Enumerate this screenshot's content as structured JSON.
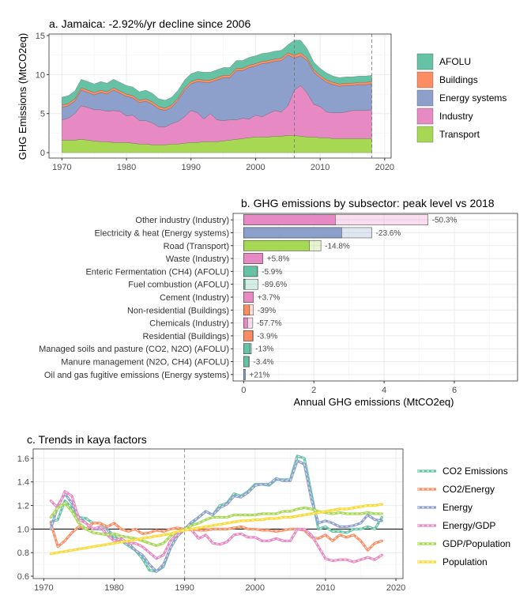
{
  "chart_data": [
    {
      "type": "area",
      "title": "a. Jamaica: -2.92%/yr decline since 2006",
      "ylabel": "GHG Emissions (MtCO2eq)",
      "xlabel": "",
      "xlim": [
        1968,
        2021
      ],
      "ylim": [
        -0.7,
        15.2
      ],
      "xticks": [
        1970,
        1980,
        1990,
        2000,
        2010,
        2020
      ],
      "yticks": [
        0,
        5,
        10,
        15
      ],
      "vlines": [
        2006,
        2018
      ],
      "grid": true,
      "legend_position": "right",
      "x": [
        1970,
        1971,
        1972,
        1973,
        1974,
        1975,
        1976,
        1977,
        1978,
        1979,
        1980,
        1981,
        1982,
        1983,
        1984,
        1985,
        1986,
        1987,
        1988,
        1989,
        1990,
        1991,
        1992,
        1993,
        1994,
        1995,
        1996,
        1997,
        1998,
        1999,
        2000,
        2001,
        2002,
        2003,
        2004,
        2005,
        2006,
        2007,
        2008,
        2009,
        2010,
        2011,
        2012,
        2013,
        2014,
        2015,
        2016,
        2017,
        2018
      ],
      "series": [
        {
          "name": "Transport",
          "color": "#a6d854",
          "values": [
            1.6,
            1.6,
            1.6,
            1.7,
            1.6,
            1.5,
            1.4,
            1.4,
            1.3,
            1.3,
            1.3,
            1.2,
            1.1,
            1.1,
            1.0,
            1.0,
            1.0,
            1.1,
            1.1,
            1.2,
            1.3,
            1.3,
            1.4,
            1.4,
            1.4,
            1.5,
            1.6,
            1.7,
            1.8,
            1.9,
            2.0,
            2.0,
            2.0,
            2.1,
            2.1,
            2.2,
            2.2,
            2.1,
            2.0,
            2.0,
            1.9,
            1.9,
            1.8,
            1.8,
            1.8,
            1.8,
            1.8,
            1.8,
            1.8
          ]
        },
        {
          "name": "Industry",
          "color": "#e78ac3",
          "values": [
            2.6,
            2.8,
            3.4,
            4.3,
            4.2,
            4.0,
            4.1,
            3.9,
            4.1,
            4.0,
            3.4,
            3.6,
            3.0,
            3.0,
            2.8,
            2.3,
            2.3,
            2.6,
            2.9,
            3.4,
            4.1,
            3.8,
            2.9,
            3.6,
            2.8,
            2.6,
            2.6,
            2.5,
            2.6,
            2.4,
            2.8,
            2.6,
            3.0,
            3.3,
            3.1,
            3.8,
            5.8,
            6.5,
            5.6,
            4.2,
            4.0,
            3.3,
            3.3,
            3.3,
            3.4,
            3.6,
            3.6,
            3.6,
            3.7
          ]
        },
        {
          "name": "Energy systems",
          "color": "#8da0cb",
          "values": [
            1.6,
            1.6,
            1.6,
            2.0,
            1.9,
            1.9,
            2.2,
            2.2,
            2.6,
            2.3,
            2.5,
            2.2,
            2.3,
            2.5,
            2.4,
            2.3,
            2.1,
            2.1,
            2.7,
            3.4,
            3.4,
            4.0,
            4.7,
            4.0,
            5.1,
            5.5,
            5.4,
            6.3,
            6.1,
            6.6,
            6.3,
            6.8,
            6.5,
            6.3,
            6.6,
            6.5,
            4.1,
            3.8,
            4.2,
            4.1,
            3.7,
            3.8,
            3.6,
            3.4,
            3.4,
            3.2,
            3.3,
            3.3,
            3.3
          ]
        },
        {
          "name": "Buildings",
          "color": "#fc8d62",
          "values": [
            0.3,
            0.3,
            0.3,
            0.3,
            0.3,
            0.3,
            0.3,
            0.3,
            0.3,
            0.3,
            0.3,
            0.3,
            0.3,
            0.3,
            0.3,
            0.3,
            0.3,
            0.3,
            0.3,
            0.3,
            0.3,
            0.3,
            0.3,
            0.3,
            0.3,
            0.3,
            0.3,
            0.3,
            0.3,
            0.3,
            0.3,
            0.3,
            0.3,
            0.3,
            0.3,
            0.3,
            0.4,
            0.4,
            0.3,
            0.3,
            0.3,
            0.3,
            0.3,
            0.3,
            0.3,
            0.3,
            0.3,
            0.3,
            0.3
          ]
        },
        {
          "name": "AFOLU",
          "color": "#66c2a5",
          "values": [
            1.0,
            1.0,
            1.0,
            1.1,
            1.1,
            1.1,
            1.1,
            1.1,
            1.1,
            1.1,
            1.1,
            1.1,
            1.1,
            1.1,
            1.1,
            1.0,
            1.0,
            1.0,
            1.0,
            1.0,
            1.0,
            1.0,
            1.0,
            1.0,
            1.0,
            1.0,
            1.0,
            1.0,
            1.0,
            1.0,
            1.0,
            1.0,
            1.0,
            1.0,
            1.0,
            1.0,
            1.9,
            1.6,
            1.2,
            1.0,
            0.9,
            0.9,
            0.8,
            0.8,
            0.8,
            0.8,
            0.8,
            0.8,
            0.8
          ]
        }
      ]
    },
    {
      "type": "bar",
      "title": "b. GHG emissions by subsector: peak level vs 2018",
      "xlabel": "Annual GHG emissions (MtCO2eq)",
      "ylabel": "",
      "orientation": "horizontal",
      "xlim": [
        -0.3,
        7.8
      ],
      "xticks": [
        0,
        2,
        4,
        6
      ],
      "grid": true,
      "categories": [
        "Other industry (Industry)",
        "Electricity & heat (Energy systems)",
        "Road (Transport)",
        "Waste (Industry)",
        "Enteric Fermentation (CH4) (AFOLU)",
        "Fuel combustion (AFOLU)",
        "Cement (Industry)",
        "Non-residential (Buildings)",
        "Chemicals (Industry)",
        "Residential (Buildings)",
        "Managed soils and pasture (CO2, N2O) (AFOLU)",
        "Manure management (N2O, CH4) (AFOLU)",
        "Oil and gas fugitive emissions (Energy systems)"
      ],
      "series": [
        {
          "name": "peak",
          "values": [
            5.25,
            3.65,
            2.2,
            0.52,
            0.4,
            0.41,
            0.27,
            0.28,
            0.26,
            0.27,
            0.22,
            0.16,
            0.04
          ]
        },
        {
          "name": "2018",
          "values": [
            2.61,
            2.79,
            1.87,
            0.55,
            0.38,
            0.04,
            0.28,
            0.17,
            0.11,
            0.26,
            0.19,
            0.15,
            0.05
          ]
        }
      ],
      "labels": [
        "-50.3%",
        "-23.6%",
        "-14.8%",
        "+5.8%",
        "-5.9%",
        "-89.6%",
        "+3.7%",
        "-39%",
        "-57.7%",
        "-3.9%",
        "-13%",
        "-3.4%",
        "+21%"
      ],
      "colors": [
        "#e78ac3",
        "#8da0cb",
        "#a6d854",
        "#e78ac3",
        "#66c2a5",
        "#66c2a5",
        "#e78ac3",
        "#fc8d62",
        "#e78ac3",
        "#fc8d62",
        "#66c2a5",
        "#66c2a5",
        "#8da0cb"
      ]
    },
    {
      "type": "line",
      "title": "c. Trends in kaya factors",
      "xlabel": "",
      "ylabel": "",
      "xlim": [
        1968.5,
        2021
      ],
      "ylim": [
        0.58,
        1.68
      ],
      "xticks": [
        1970,
        1980,
        1990,
        2000,
        2010,
        2020
      ],
      "yticks": [
        0.6,
        0.8,
        1.0,
        1.2,
        1.4,
        1.6
      ],
      "hline": 1.0,
      "vlines": [
        1990
      ],
      "grid": true,
      "legend_position": "right",
      "x": [
        1971,
        1972,
        1973,
        1974,
        1975,
        1976,
        1977,
        1978,
        1979,
        1980,
        1981,
        1982,
        1983,
        1984,
        1985,
        1986,
        1987,
        1988,
        1989,
        1990,
        1991,
        1992,
        1993,
        1994,
        1995,
        1996,
        1997,
        1998,
        1999,
        2000,
        2001,
        2002,
        2003,
        2004,
        2005,
        2006,
        2007,
        2008,
        2009,
        2010,
        2011,
        2012,
        2013,
        2014,
        2015,
        2016,
        2017,
        2018
      ],
      "series": [
        {
          "name": "CO2 Emissions",
          "color": "#66c2a5",
          "values": [
            1.06,
            1.08,
            1.24,
            1.18,
            1.1,
            1.09,
            1.05,
            1.05,
            1.0,
            0.94,
            0.9,
            0.86,
            0.82,
            0.75,
            0.65,
            0.64,
            0.68,
            0.84,
            0.95,
            1.0,
            1.05,
            1.1,
            1.15,
            1.12,
            1.2,
            1.22,
            1.3,
            1.28,
            1.32,
            1.38,
            1.38,
            1.37,
            1.42,
            1.42,
            1.42,
            1.62,
            1.6,
            1.3,
            1.0,
            1.02,
            0.98,
            0.98,
            0.97,
            1.0,
            1.0,
            1.02,
            1.0,
            1.1
          ]
        },
        {
          "name": "CO2/Energy",
          "color": "#fc8d62",
          "values": [
            1.05,
            0.85,
            0.9,
            0.97,
            1.02,
            1.0,
            1.05,
            1.05,
            1.02,
            1.05,
            1.0,
            0.98,
            1.0,
            0.96,
            0.97,
            0.99,
            0.98,
            1.0,
            1.01,
            1.0,
            1.0,
            0.99,
            0.99,
            1.0,
            1.0,
            1.0,
            1.01,
            1.02,
            1.0,
            1.0,
            0.99,
            0.99,
            0.98,
            0.99,
            1.0,
            1.0,
            0.99,
            0.93,
            0.92,
            0.95,
            0.9,
            0.95,
            0.93,
            0.95,
            0.9,
            0.82,
            0.88,
            0.9
          ]
        },
        {
          "name": "Energy",
          "color": "#8da0cb",
          "values": [
            1.0,
            1.2,
            1.3,
            1.22,
            1.1,
            1.05,
            1.0,
            1.0,
            1.0,
            0.9,
            0.9,
            0.88,
            0.82,
            0.78,
            0.7,
            0.64,
            0.7,
            0.84,
            0.94,
            1.0,
            1.06,
            1.1,
            1.15,
            1.12,
            1.18,
            1.21,
            1.28,
            1.27,
            1.31,
            1.37,
            1.38,
            1.38,
            1.43,
            1.41,
            1.41,
            1.58,
            1.55,
            1.25,
            1.05,
            1.07,
            1.05,
            1.02,
            1.02,
            1.03,
            1.05,
            1.12,
            1.08,
            1.07
          ]
        },
        {
          "name": "Energy/GDP",
          "color": "#e78ac3",
          "values": [
            1.24,
            1.18,
            1.32,
            1.28,
            1.08,
            1.05,
            1.0,
            1.02,
            0.95,
            0.9,
            0.92,
            0.88,
            0.88,
            0.85,
            0.8,
            0.75,
            0.78,
            0.9,
            0.96,
            1.0,
            0.99,
            0.92,
            0.95,
            0.88,
            0.87,
            0.89,
            0.95,
            0.96,
            0.93,
            0.93,
            0.9,
            0.9,
            0.92,
            0.9,
            0.9,
            1.0,
            1.0,
            0.95,
            0.85,
            0.75,
            0.73,
            0.74,
            0.74,
            0.72,
            0.74,
            0.76,
            0.74,
            0.78
          ]
        },
        {
          "name": "GDP/Population",
          "color": "#a6d854",
          "values": [
            1.1,
            1.18,
            1.22,
            1.15,
            1.05,
            1.0,
            0.97,
            0.96,
            0.95,
            0.96,
            0.94,
            0.93,
            0.92,
            0.9,
            0.88,
            0.86,
            0.88,
            0.94,
            0.98,
            1.0,
            1.03,
            1.05,
            1.08,
            1.1,
            1.1,
            1.1,
            1.12,
            1.12,
            1.12,
            1.12,
            1.13,
            1.13,
            1.13,
            1.15,
            1.15,
            1.17,
            1.18,
            1.17,
            1.15,
            1.14,
            1.13,
            1.14,
            1.13,
            1.13,
            1.13,
            1.14,
            1.13,
            1.13
          ]
        },
        {
          "name": "Population",
          "color": "#ffd92f",
          "values": [
            0.79,
            0.8,
            0.81,
            0.82,
            0.83,
            0.84,
            0.85,
            0.86,
            0.87,
            0.88,
            0.89,
            0.9,
            0.91,
            0.92,
            0.93,
            0.94,
            0.95,
            0.96,
            0.98,
            0.99,
            1.0,
            1.01,
            1.02,
            1.03,
            1.04,
            1.05,
            1.06,
            1.07,
            1.07,
            1.08,
            1.08,
            1.09,
            1.09,
            1.1,
            1.1,
            1.11,
            1.12,
            1.13,
            1.14,
            1.15,
            1.16,
            1.17,
            1.17,
            1.18,
            1.19,
            1.2,
            1.2,
            1.21
          ]
        }
      ]
    }
  ]
}
